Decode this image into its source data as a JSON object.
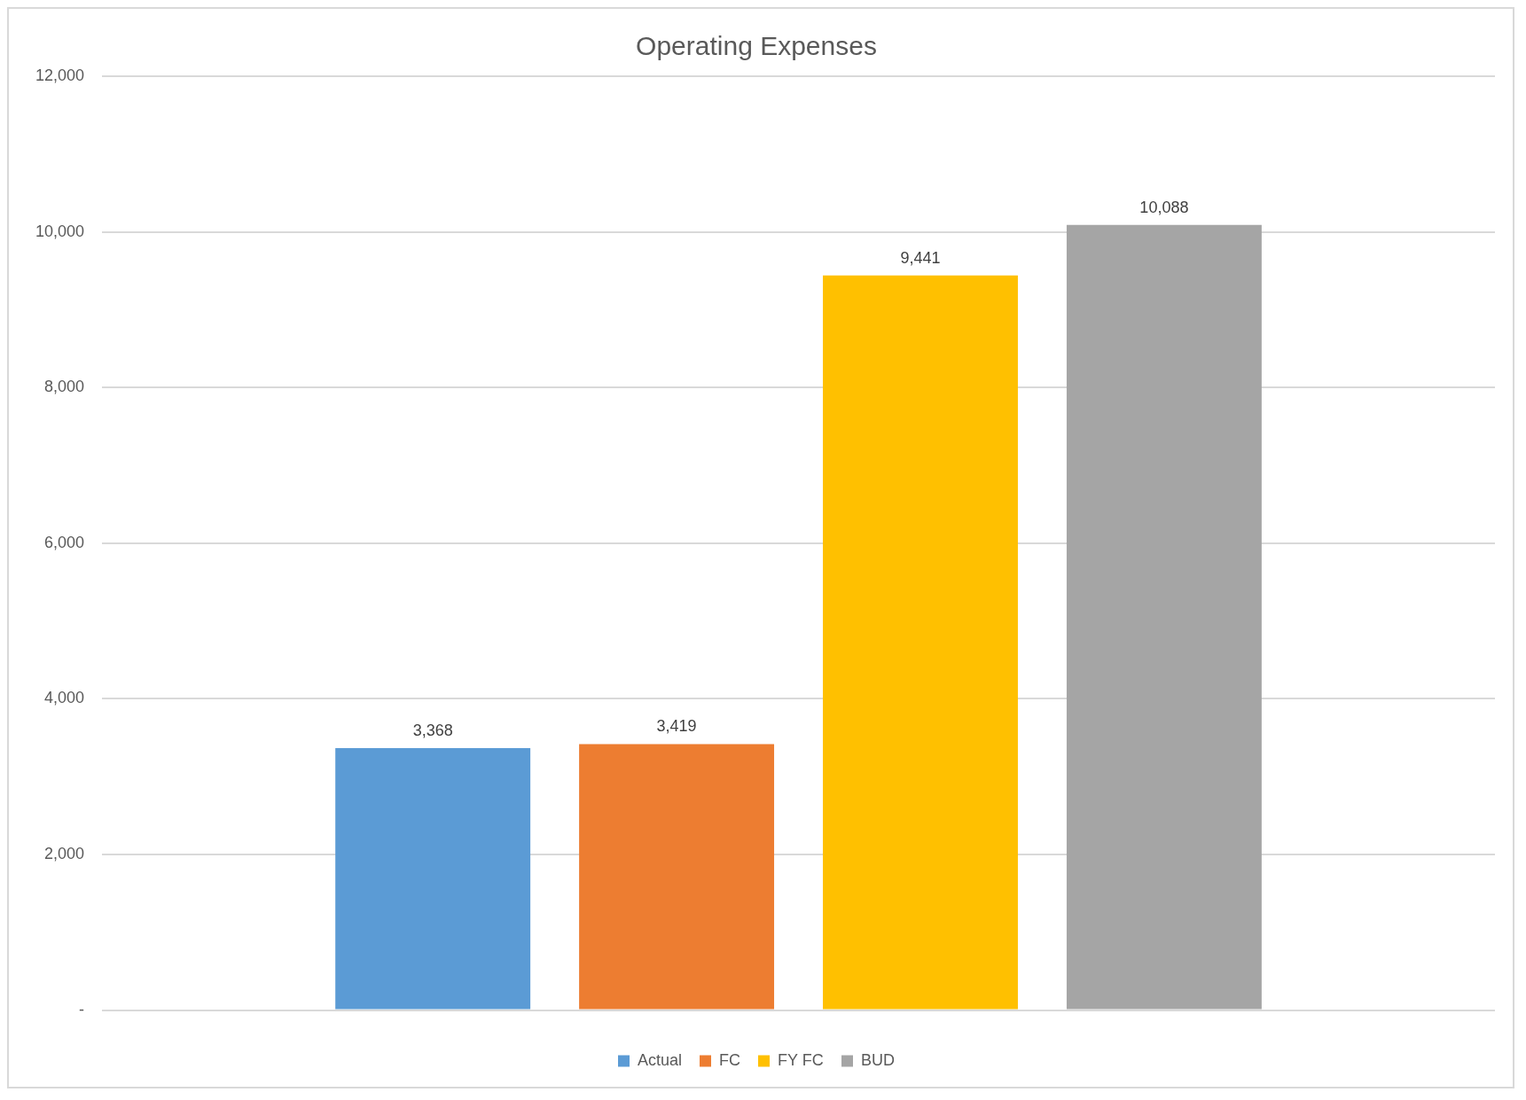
{
  "chart_data": {
    "type": "bar",
    "title": "Operating Expenses",
    "categories": [
      null
    ],
    "series": [
      {
        "name": "Actual",
        "color": "#5b9bd5",
        "values": [
          3368
        ],
        "value_labels": [
          "3,368"
        ]
      },
      {
        "name": "FC",
        "color": "#ed7d31",
        "values": [
          3419
        ],
        "value_labels": [
          "3,419"
        ]
      },
      {
        "name": "FY FC",
        "color": "#ffc000",
        "values": [
          9441
        ],
        "value_labels": [
          "9,441"
        ]
      },
      {
        "name": "BUD",
        "color": "#a5a5a5",
        "values": [
          10088
        ],
        "value_labels": [
          "10,088"
        ]
      }
    ],
    "ylim": [
      0,
      12000
    ],
    "yticks": [
      {
        "value": 0,
        "label": "-"
      },
      {
        "value": 2000,
        "label": "2,000"
      },
      {
        "value": 4000,
        "label": "4,000"
      },
      {
        "value": 6000,
        "label": "6,000"
      },
      {
        "value": 8000,
        "label": "8,000"
      },
      {
        "value": 10000,
        "label": "10,000"
      },
      {
        "value": 12000,
        "label": "12,000"
      }
    ],
    "grid": "y",
    "legend": "bottom"
  }
}
